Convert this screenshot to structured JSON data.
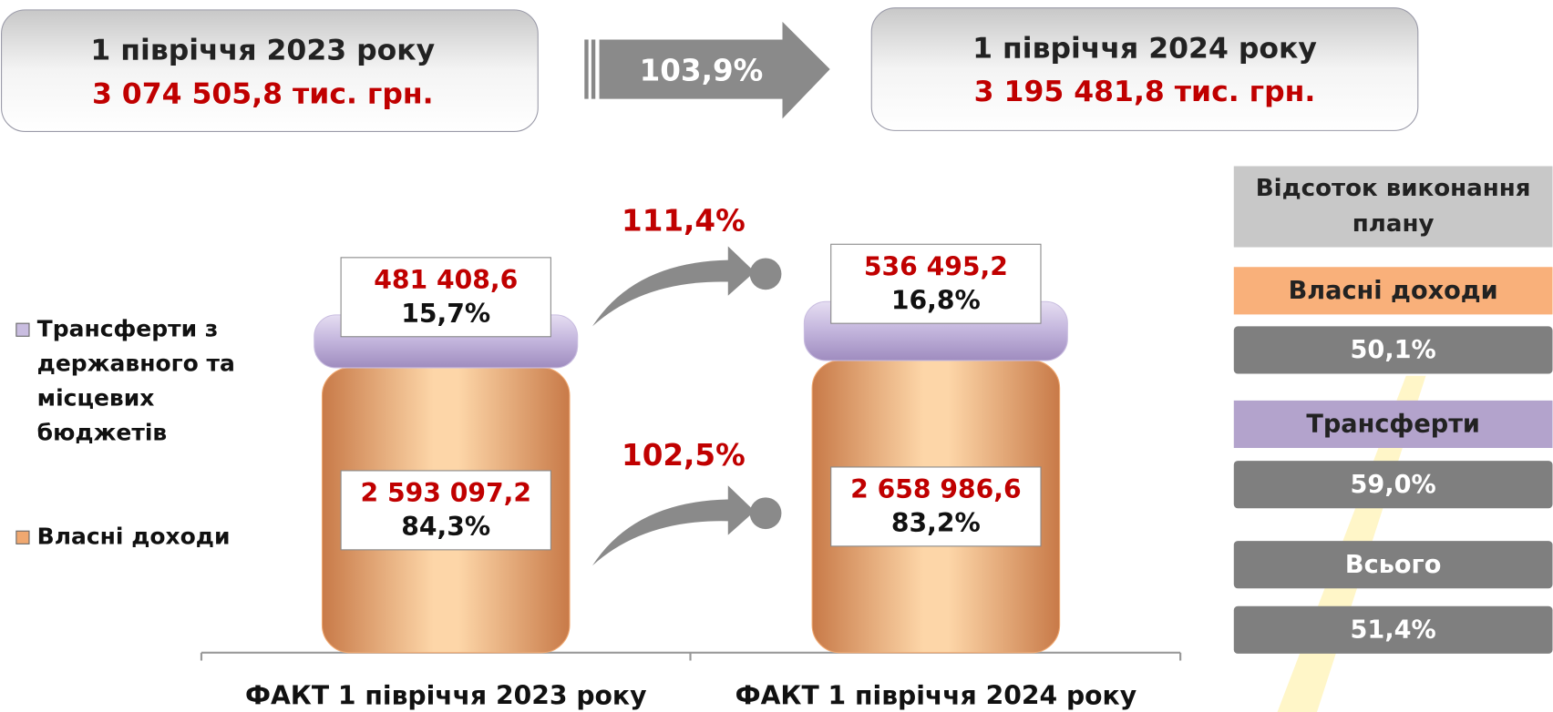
{
  "header": {
    "left": {
      "title": "1 півріччя 2023 року",
      "amount": "3 074 505,8 тис. грн."
    },
    "growth": "103,9%",
    "right": {
      "title": "1 півріччя 2024 року",
      "amount": "3 195 481,8 тис. грн."
    }
  },
  "chart_data": {
    "type": "stacked-bar",
    "categories": [
      "ФАКТ 1 півріччя 2023 року",
      "ФАКТ 1 півріччя 2024 року"
    ],
    "series": [
      {
        "name": "Трансферти з державного та місцевих бюджетів",
        "color": "#c9bde0",
        "values": [
          481408.6,
          536495.2
        ],
        "value_labels": [
          "481 408,6",
          "536 495,2"
        ],
        "shares": [
          15.7,
          16.8
        ],
        "share_labels": [
          "15,7%",
          "16,8%"
        ],
        "growth": "111,4%"
      },
      {
        "name": "Власні доходи",
        "color": "#f0a870",
        "values": [
          2593097.2,
          2658986.6
        ],
        "value_labels": [
          "2 593 097,2",
          "2 658 986,6"
        ],
        "shares": [
          84.3,
          83.2
        ],
        "share_labels": [
          "84,3%",
          "83,2%"
        ],
        "growth": "102,5%"
      }
    ]
  },
  "plan_panel": {
    "title": "Відсоток виконання плану",
    "rows": [
      {
        "label": "Власні доходи",
        "value": "50,1%"
      },
      {
        "label": "Трансферти",
        "value": "59,0%"
      },
      {
        "label": "Всього",
        "value": "51,4%"
      }
    ]
  }
}
